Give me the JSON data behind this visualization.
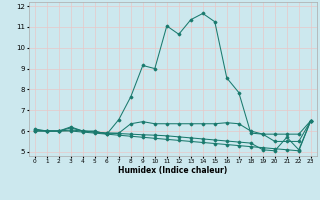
{
  "xlabel": "Humidex (Indice chaleur)",
  "xlim": [
    -0.5,
    23.5
  ],
  "ylim": [
    4.8,
    12.2
  ],
  "yticks": [
    5,
    6,
    7,
    8,
    9,
    10,
    11,
    12
  ],
  "xticks": [
    0,
    1,
    2,
    3,
    4,
    5,
    6,
    7,
    8,
    9,
    10,
    11,
    12,
    13,
    14,
    15,
    16,
    17,
    18,
    19,
    20,
    21,
    22,
    23
  ],
  "bg_color": "#cce8ee",
  "grid_color": "#e8c8c8",
  "line_color": "#1a7a6e",
  "lines": [
    {
      "x": [
        0,
        1,
        2,
        3,
        4,
        5,
        6,
        7,
        8,
        9,
        10,
        11,
        12,
        13,
        14,
        15,
        16,
        17,
        18,
        19,
        20,
        21,
        22,
        23
      ],
      "y": [
        6.0,
        6.0,
        6.0,
        6.2,
        6.0,
        6.0,
        5.85,
        6.55,
        7.65,
        9.15,
        9.0,
        11.05,
        10.65,
        11.35,
        11.65,
        11.25,
        8.55,
        7.85,
        5.9,
        5.85,
        5.85,
        5.85,
        5.85,
        6.5
      ]
    },
    {
      "x": [
        0,
        1,
        2,
        3,
        4,
        5,
        6,
        7,
        8,
        9,
        10,
        11,
        12,
        13,
        14,
        15,
        16,
        17,
        18,
        19,
        20,
        21,
        22,
        23
      ],
      "y": [
        6.0,
        6.0,
        6.0,
        6.15,
        6.0,
        5.95,
        5.9,
        5.9,
        6.35,
        6.45,
        6.35,
        6.35,
        6.35,
        6.35,
        6.35,
        6.35,
        6.4,
        6.35,
        6.0,
        5.85,
        5.5,
        5.5,
        5.5,
        6.5
      ]
    },
    {
      "x": [
        0,
        1,
        2,
        3,
        4,
        5,
        6,
        7,
        8,
        9,
        10,
        11,
        12,
        13,
        14,
        15,
        16,
        17,
        18,
        19,
        20,
        21,
        22,
        23
      ],
      "y": [
        6.1,
        6.0,
        6.0,
        6.0,
        5.95,
        5.9,
        5.85,
        5.8,
        5.75,
        5.7,
        5.65,
        5.6,
        5.55,
        5.5,
        5.45,
        5.4,
        5.35,
        5.3,
        5.25,
        5.2,
        5.15,
        5.1,
        5.05,
        6.5
      ]
    },
    {
      "x": [
        0,
        1,
        2,
        3,
        4,
        5,
        6,
        7,
        8,
        9,
        10,
        11,
        12,
        13,
        14,
        15,
        16,
        17,
        18,
        19,
        20,
        21,
        22,
        23
      ],
      "y": [
        6.05,
        6.0,
        6.0,
        6.05,
        6.0,
        5.95,
        5.9,
        5.88,
        5.85,
        5.82,
        5.8,
        5.77,
        5.72,
        5.67,
        5.62,
        5.57,
        5.52,
        5.47,
        5.42,
        5.1,
        5.05,
        5.7,
        5.1,
        6.5
      ]
    }
  ]
}
